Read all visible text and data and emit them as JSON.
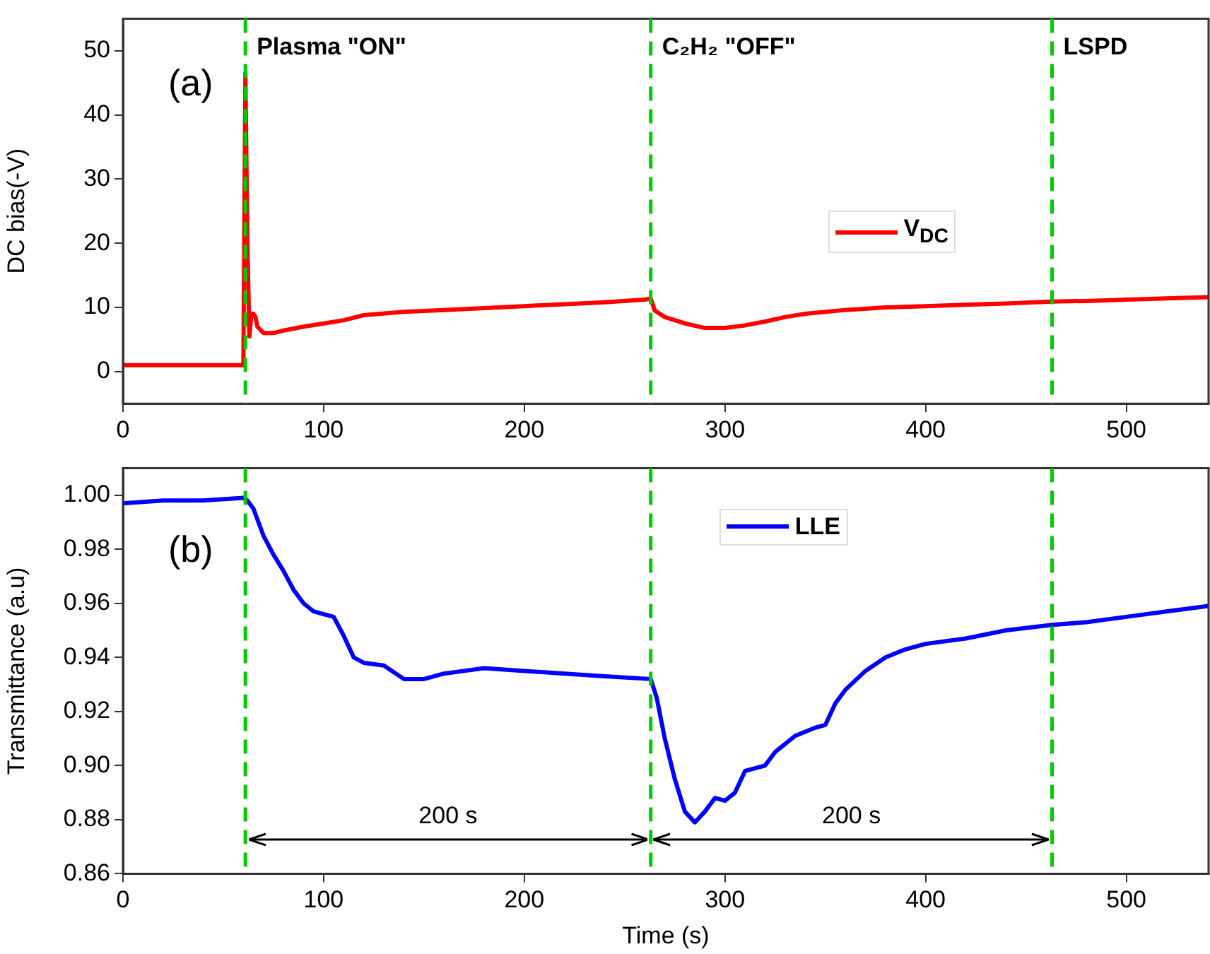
{
  "chart_data": [
    {
      "type": "line",
      "ylabel": "DC bias(-V)",
      "xlim": [
        0,
        541
      ],
      "xticks": [
        0,
        100,
        200,
        300,
        400,
        500
      ],
      "ylim": [
        -5,
        55
      ],
      "yticks": [
        0,
        10,
        20,
        30,
        40,
        50
      ],
      "grid": false,
      "legend": "right",
      "marker": "none",
      "line_style": "solid",
      "annotations": [
        "(a)"
      ],
      "ref_lines": [
        {
          "axis": "x",
          "value": 61,
          "label": "Plasma \"ON\"",
          "color": "#00cc00",
          "line_style": "dashed"
        },
        {
          "axis": "x",
          "value": 263,
          "label": "C₂H₂ \"OFF\"",
          "color": "#00cc00",
          "line_style": "dashed"
        },
        {
          "axis": "x",
          "value": 463,
          "label": "LSPD",
          "color": "#00cc00",
          "line_style": "dashed"
        }
      ],
      "series": [
        {
          "name": "V$_{DC}$",
          "color": "#ff0000",
          "x": [
            0,
            20,
            40,
            59,
            60,
            61,
            62,
            63,
            64,
            65,
            66,
            67,
            70,
            75,
            80,
            90,
            100,
            110,
            120,
            140,
            160,
            180,
            200,
            220,
            240,
            260,
            263,
            265,
            270,
            280,
            290,
            300,
            310,
            320,
            330,
            340,
            360,
            380,
            400,
            420,
            440,
            463,
            480,
            500,
            520,
            541
          ],
          "values": [
            1,
            1,
            1,
            1,
            1,
            46.5,
            20,
            5.5,
            9,
            9,
            8.5,
            7,
            6,
            6,
            6.4,
            7,
            7.5,
            8,
            8.8,
            9.3,
            9.6,
            9.9,
            10.2,
            10.5,
            10.8,
            11.2,
            11.4,
            9.5,
            8.5,
            7.5,
            6.8,
            6.8,
            7.2,
            7.8,
            8.5,
            9,
            9.6,
            10,
            10.2,
            10.4,
            10.6,
            10.9,
            11,
            11.2,
            11.4,
            11.6
          ]
        }
      ]
    },
    {
      "type": "line",
      "xlabel": "Time (s)",
      "ylabel": "Transmittance (a.u)",
      "xlim": [
        0,
        541
      ],
      "xticks": [
        0,
        100,
        200,
        300,
        400,
        500
      ],
      "ylim": [
        0.86,
        1.01
      ],
      "yticks": [
        {
          "value": 0.86,
          "label": "0.86"
        },
        {
          "value": 0.88,
          "label": "0.88"
        },
        {
          "value": 0.9,
          "label": "0.90"
        },
        {
          "value": 0.92,
          "label": "0.92"
        },
        {
          "value": 0.94,
          "label": "0.94"
        },
        {
          "value": 0.96,
          "label": "0.96"
        },
        {
          "value": 0.98,
          "label": "0.98"
        },
        {
          "value": 1,
          "label": "1.00"
        }
      ],
      "grid": false,
      "legend": "top",
      "marker": "none",
      "line_style": "solid",
      "annotations": [
        "(b)",
        "200 s",
        "200 s"
      ],
      "ref_lines": [
        {
          "axis": "x",
          "value": 61,
          "color": "#00cc00",
          "line_style": "dashed"
        },
        {
          "axis": "x",
          "value": 263,
          "color": "#00cc00",
          "line_style": "dashed"
        },
        {
          "axis": "x",
          "value": 463,
          "color": "#00cc00",
          "line_style": "dashed"
        }
      ],
      "series": [
        {
          "name": "LLE",
          "color": "#0000ff",
          "x": [
            0,
            20,
            40,
            60,
            62,
            65,
            70,
            75,
            80,
            85,
            90,
            95,
            100,
            105,
            110,
            115,
            120,
            130,
            140,
            150,
            160,
            170,
            180,
            200,
            220,
            240,
            263,
            266,
            270,
            275,
            280,
            285,
            290,
            295,
            300,
            305,
            310,
            315,
            320,
            325,
            335,
            345,
            350,
            355,
            360,
            370,
            380,
            390,
            400,
            420,
            440,
            463,
            480,
            500,
            520,
            541
          ],
          "values": [
            0.997,
            0.998,
            0.998,
            0.999,
            0.998,
            0.995,
            0.985,
            0.978,
            0.972,
            0.965,
            0.96,
            0.957,
            0.956,
            0.955,
            0.948,
            0.94,
            0.938,
            0.937,
            0.932,
            0.932,
            0.934,
            0.935,
            0.936,
            0.935,
            0.934,
            0.933,
            0.932,
            0.925,
            0.91,
            0.895,
            0.883,
            0.879,
            0.883,
            0.888,
            0.887,
            0.89,
            0.898,
            0.899,
            0.9,
            0.905,
            0.911,
            0.914,
            0.915,
            0.923,
            0.928,
            0.935,
            0.94,
            0.943,
            0.945,
            0.947,
            0.95,
            0.952,
            0.953,
            0.955,
            0.957,
            0.959
          ]
        }
      ]
    }
  ]
}
